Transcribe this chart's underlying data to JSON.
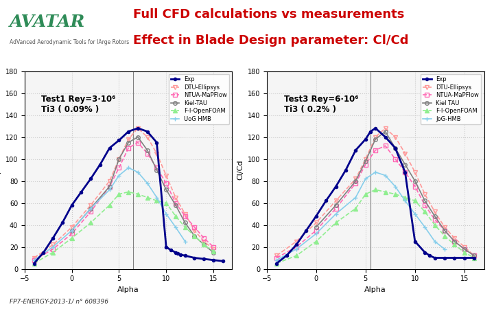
{
  "title_line1": "Full CFD calculations vs measurements",
  "title_line2": "Effect in Blade Design parameter: Cl/Cd",
  "title_color": "#cc0000",
  "header_bg": "#ffffff",
  "divider_color": "#2e8b57",
  "footer_text": "FP7-ENERGY-2013-1/ n° 608396",
  "plot1": {
    "label": "Test1 Rey=3·10⁶\nTi3 ( 0.09% )",
    "xlabel": "Alpha",
    "ylabel": "Cl/Cd",
    "xlim": [
      -5,
      17
    ],
    "ylim": [
      0,
      180
    ],
    "yticks": [
      0,
      20,
      40,
      60,
      80,
      100,
      120,
      140,
      160,
      180
    ],
    "xticks": [
      -5,
      0,
      5,
      10,
      15
    ],
    "exp_x": [
      -4,
      -3,
      -2,
      -1,
      0,
      1,
      2,
      3,
      4,
      5,
      6,
      7,
      8,
      9,
      10,
      10.5,
      11,
      11.2,
      11.5,
      12,
      13,
      14,
      15,
      16
    ],
    "exp_y": [
      5,
      15,
      28,
      42,
      58,
      70,
      82,
      95,
      110,
      117,
      125,
      128,
      125,
      115,
      20,
      17,
      15,
      14,
      13,
      12,
      10,
      9,
      8,
      7
    ],
    "dtu_x": [
      -4,
      -2,
      0,
      2,
      4,
      5,
      6,
      7,
      8,
      9,
      10,
      11,
      12,
      13,
      14,
      15
    ],
    "dtu_y": [
      10,
      22,
      38,
      58,
      80,
      100,
      118,
      128,
      120,
      105,
      85,
      65,
      50,
      35,
      25,
      18
    ],
    "ntua_x": [
      -4,
      -2,
      0,
      2,
      4,
      5,
      6,
      7,
      8,
      9,
      10,
      11,
      12,
      13,
      14,
      15
    ],
    "ntua_y": [
      8,
      18,
      32,
      52,
      75,
      92,
      110,
      115,
      105,
      92,
      78,
      60,
      48,
      38,
      28,
      20
    ],
    "kiel_x": [
      0,
      2,
      4,
      5,
      6,
      7,
      8,
      9,
      10,
      11,
      12,
      13,
      14,
      15
    ],
    "kiel_y": [
      35,
      55,
      75,
      100,
      115,
      120,
      108,
      90,
      72,
      58,
      42,
      30,
      22,
      15
    ],
    "foam_x": [
      -4,
      -2,
      0,
      2,
      4,
      5,
      6,
      7,
      8,
      9,
      10,
      11,
      12,
      13,
      14,
      15
    ],
    "foam_y": [
      5,
      15,
      28,
      42,
      58,
      68,
      70,
      68,
      65,
      62,
      60,
      48,
      38,
      30,
      22,
      16
    ],
    "hmb_x": [
      -4,
      -2,
      0,
      2,
      4,
      5,
      6,
      7,
      8,
      9,
      10,
      11,
      12
    ],
    "hmb_y": [
      8,
      20,
      35,
      55,
      72,
      85,
      92,
      88,
      78,
      65,
      50,
      38,
      25
    ],
    "legend": [
      "Exp",
      "DTU-Ellipsys",
      "NTUA-MaPFlow",
      "Kiel-TAU",
      "F-I-OpenFOAM",
      "UoG HMB"
    ]
  },
  "plot2": {
    "label": "Test3 Rey=6·10⁶\nTi3 ( 0.2% )",
    "xlabel": "Alpha",
    "ylabel": "Cl/Cd",
    "xlim": [
      -5,
      17
    ],
    "ylim": [
      0,
      180
    ],
    "yticks": [
      0,
      20,
      40,
      60,
      80,
      100,
      120,
      140,
      160,
      180
    ],
    "xticks": [
      -5,
      0,
      5,
      10,
      15
    ],
    "exp_x": [
      -4,
      -3,
      -2,
      -1,
      0,
      1,
      2,
      3,
      4,
      5,
      5.5,
      6,
      7,
      8,
      9,
      10,
      11,
      11.5,
      12,
      13,
      14,
      15,
      16
    ],
    "exp_y": [
      5,
      12,
      22,
      35,
      48,
      62,
      75,
      90,
      108,
      118,
      125,
      128,
      120,
      110,
      88,
      25,
      15,
      12,
      10,
      10,
      10,
      10,
      10
    ],
    "dtu_x": [
      -4,
      -2,
      0,
      2,
      4,
      5,
      6,
      7,
      8,
      9,
      10,
      11,
      12,
      13,
      14,
      15,
      16
    ],
    "dtu_y": [
      12,
      25,
      42,
      62,
      82,
      100,
      120,
      128,
      120,
      105,
      88,
      68,
      52,
      38,
      28,
      20,
      12
    ],
    "ntua_x": [
      -4,
      -2,
      0,
      2,
      4,
      5,
      6,
      7,
      8,
      9,
      10,
      11,
      12,
      13,
      14,
      15,
      16
    ],
    "ntua_y": [
      10,
      20,
      35,
      55,
      78,
      95,
      108,
      112,
      100,
      88,
      75,
      58,
      45,
      35,
      25,
      18,
      12
    ],
    "kiel_x": [
      0,
      2,
      4,
      5,
      6,
      7,
      8,
      9,
      10,
      11,
      12,
      13,
      14,
      15,
      16
    ],
    "kiel_y": [
      38,
      58,
      80,
      98,
      118,
      125,
      110,
      95,
      80,
      62,
      48,
      35,
      25,
      18,
      12
    ],
    "foam_x": [
      -4,
      -2,
      0,
      2,
      4,
      5,
      6,
      7,
      8,
      9,
      10,
      11,
      12,
      13,
      14,
      15,
      16
    ],
    "foam_y": [
      5,
      12,
      25,
      42,
      55,
      68,
      72,
      70,
      68,
      65,
      62,
      52,
      40,
      30,
      22,
      15,
      10
    ],
    "hmb_x": [
      -4,
      -2,
      0,
      2,
      4,
      5,
      6,
      7,
      8,
      9,
      10,
      11,
      12,
      13
    ],
    "hmb_y": [
      8,
      18,
      32,
      50,
      65,
      82,
      88,
      85,
      75,
      62,
      50,
      38,
      25,
      18
    ],
    "legend": [
      "Exp",
      "DTU-Ellipsys",
      "NTUA-MaPFlow",
      "Kiel TAU",
      "F-I-OpenFOAM",
      "JoG-HMB"
    ]
  },
  "exp_color": "#00008b",
  "dtu_color": "#ff9999",
  "ntua_color": "#ff69b4",
  "kiel_color": "#808080",
  "foam_color": "#90ee90",
  "hmb_color": "#87ceeb",
  "bg_plot": "#f5f5f5",
  "grid_color": "#cccccc",
  "avatar_color": "#2e8b57"
}
